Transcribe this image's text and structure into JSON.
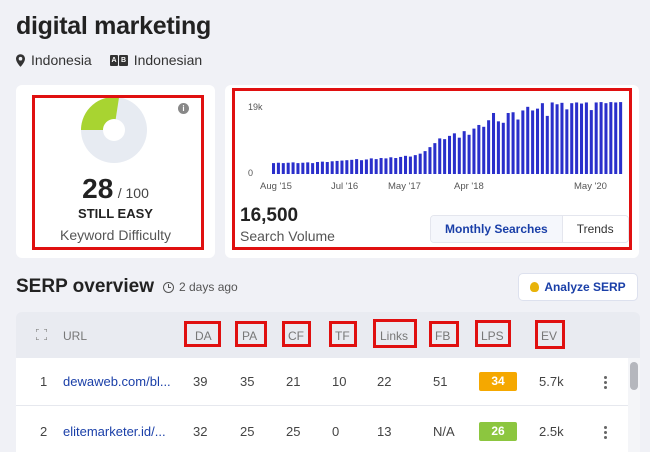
{
  "keyword": "digital marketing",
  "location": "Indonesia",
  "language": "Indonesian",
  "keyword_difficulty": {
    "value": "28",
    "max": "/ 100",
    "status": "STILL EASY",
    "label": "Keyword Difficulty",
    "gauge_fraction": 0.28,
    "colors": {
      "filled": "#a8d431",
      "empty": "#e7ebf2"
    }
  },
  "search_volume": {
    "value": "16,500",
    "label": "Search Volume",
    "tabs": [
      {
        "label": "Monthly Searches",
        "active": true
      },
      {
        "label": "Trends",
        "active": false
      }
    ]
  },
  "chart_data": {
    "type": "bar",
    "color": "#2a2fcb",
    "ylim": [
      0,
      19000
    ],
    "yticks": [
      "19k",
      "0"
    ],
    "xtick_labels": [
      "Aug '15",
      "Jul '16",
      "May '17",
      "Apr '18",
      "May '20"
    ],
    "values": [
      3000,
      3100,
      3000,
      3100,
      3200,
      3000,
      3100,
      3200,
      3000,
      3300,
      3400,
      3300,
      3500,
      3600,
      3700,
      3800,
      3900,
      4100,
      3800,
      4000,
      4300,
      4100,
      4400,
      4300,
      4600,
      4400,
      4700,
      5000,
      4800,
      5200,
      5600,
      6300,
      7400,
      8500,
      9800,
      9600,
      10500,
      11200,
      10000,
      11800,
      10800,
      12500,
      13500,
      13000,
      14800,
      16800,
      14500,
      14100,
      16800,
      17000,
      15000,
      17500,
      18500,
      17500,
      18000,
      19500,
      16000,
      19700,
      19200,
      19600,
      17800,
      19500,
      19700,
      19400,
      19700,
      17600,
      19700,
      19800,
      19500,
      19800,
      19700,
      19800
    ]
  },
  "serp": {
    "title": "SERP overview",
    "updated": "2 days ago",
    "analyze_button": "Analyze SERP",
    "columns": [
      "URL",
      "DA",
      "PA",
      "CF",
      "TF",
      "Links",
      "FB",
      "LPS",
      "EV"
    ],
    "rows": [
      {
        "rank": "1",
        "url": "dewaweb.com/bl...",
        "da": "39",
        "pa": "35",
        "cf": "21",
        "tf": "10",
        "links": "22",
        "fb": "51",
        "lps": "34",
        "lps_color": "#f5a800",
        "ev": "5.7k"
      },
      {
        "rank": "2",
        "url": "elitemarketer.id/...",
        "da": "32",
        "pa": "25",
        "cf": "25",
        "tf": "0",
        "links": "13",
        "fb": "N/A",
        "lps": "26",
        "lps_color": "#8cc63f",
        "ev": "2.5k"
      }
    ]
  }
}
